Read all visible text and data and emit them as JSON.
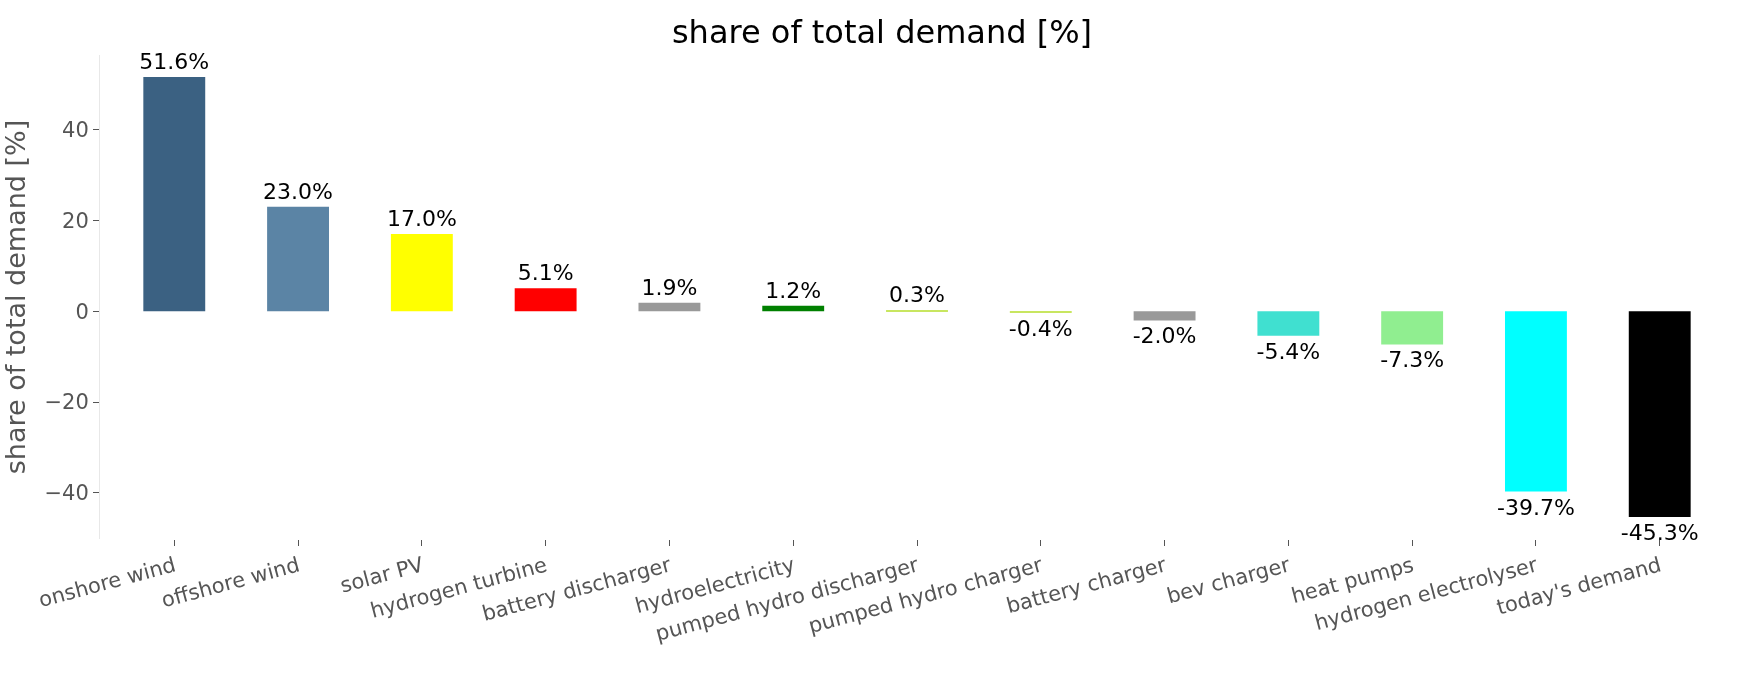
{
  "chart_data": {
    "type": "bar",
    "title": "share of total demand [%]",
    "ylabel": "share of total demand [%]",
    "categories": [
      "onshore wind",
      "offshore wind",
      "solar PV",
      "hydrogen turbine",
      "battery discharger",
      "hydroelectricity",
      "pumped hydro discharger",
      "pumped hydro charger",
      "battery charger",
      "bev charger",
      "heat pumps",
      "hydrogen electrolyser",
      "today's demand"
    ],
    "values": [
      51.6,
      23.0,
      17.0,
      5.1,
      1.9,
      1.2,
      0.3,
      -0.4,
      -2.0,
      -5.4,
      -7.3,
      -39.7,
      -45.3
    ],
    "colors": [
      "#3b6182",
      "#5b84a5",
      "#ffff00",
      "#ff0000",
      "#999999",
      "#008000",
      "#c8e660",
      "#c8e660",
      "#999999",
      "#40e0d0",
      "#90ee90",
      "#00ffff",
      "#000000"
    ],
    "value_labels": [
      "51.6%",
      "23.0%",
      "17.0%",
      "5.1%",
      "1.9%",
      "1.2%",
      "0.3%",
      "-0.4%",
      "-2.0%",
      "-5.4%",
      "-7.3%",
      "-39.7%",
      "-45.3%"
    ],
    "ylim": [
      -50.15,
      56.45
    ],
    "yticks": [
      {
        "value": -40,
        "label": "−40"
      },
      {
        "value": -20,
        "label": "−20"
      },
      0,
      20,
      40
    ],
    "legend": false
  }
}
